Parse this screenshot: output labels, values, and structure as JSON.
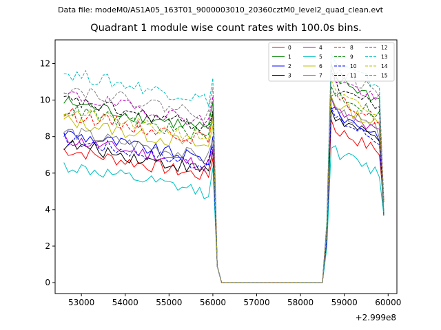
{
  "header": {
    "suptitle": "Data file: modeM0/AS1A05_163T01_9000003010_20360cztM0_level2_quad_clean.evt",
    "title": "Quadrant 1 module wise count rates with 100.0s bins."
  },
  "chart_data": {
    "type": "line",
    "title": "Quadrant 1 module wise count rates with 100.0s bins.",
    "xlabel": "",
    "ylabel": "",
    "x_offset_label": "+2.999e8",
    "xlim": [
      52400,
      60200
    ],
    "ylim": [
      -0.6,
      13.3
    ],
    "xticks": [
      53000,
      54000,
      55000,
      56000,
      57000,
      58000,
      59000,
      60000
    ],
    "xtick_labels": [
      "53000",
      "54000",
      "55000",
      "56000",
      "57000",
      "58000",
      "59000",
      "60000"
    ],
    "yticks": [
      0,
      2,
      4,
      6,
      8,
      10,
      12
    ],
    "ytick_labels": [
      "0",
      "2",
      "4",
      "6",
      "8",
      "10",
      "12"
    ],
    "legend_position": "top-right",
    "grid": false,
    "x_start": 52600,
    "x_step": 100,
    "n_points": 74,
    "gap_index_range": [
      35,
      60
    ],
    "series": [
      {
        "name": "0",
        "color": "#ff0000",
        "dash": "solid",
        "level1": 6.4,
        "level2": 7.6
      },
      {
        "name": "1",
        "color": "#008000",
        "dash": "solid",
        "level1": 9.0,
        "level2": 10.4
      },
      {
        "name": "2",
        "color": "#0000ff",
        "dash": "solid",
        "level1": 7.3,
        "level2": 8.5
      },
      {
        "name": "3",
        "color": "#000000",
        "dash": "solid",
        "level1": 6.7,
        "level2": 8.2
      },
      {
        "name": "4",
        "color": "#c000c0",
        "dash": "solid",
        "level1": 7.0,
        "level2": 8.6
      },
      {
        "name": "5",
        "color": "#00bfbf",
        "dash": "solid",
        "level1": 5.5,
        "level2": 6.4
      },
      {
        "name": "6",
        "color": "#bfbf00",
        "dash": "solid",
        "level1": 8.0,
        "level2": 9.0
      },
      {
        "name": "7",
        "color": "#808080",
        "dash": "solid",
        "level1": 7.4,
        "level2": 8.7
      },
      {
        "name": "8",
        "color": "#ff0000",
        "dash": "dashed",
        "level1": 8.4,
        "level2": 9.3
      },
      {
        "name": "9",
        "color": "#008000",
        "dash": "dashed",
        "level1": 8.6,
        "level2": 9.6
      },
      {
        "name": "10",
        "color": "#0000ff",
        "dash": "dashed",
        "level1": 7.0,
        "level2": 8.2
      },
      {
        "name": "11",
        "color": "#000000",
        "dash": "dashed",
        "level1": 9.1,
        "level2": 10.0
      },
      {
        "name": "12",
        "color": "#c000c0",
        "dash": "dashed",
        "level1": 9.4,
        "level2": 10.4
      },
      {
        "name": "13",
        "color": "#00bfbf",
        "dash": "dashed",
        "level1": 10.6,
        "level2": 11.2
      },
      {
        "name": "14",
        "color": "#bfbf00",
        "dash": "dashed",
        "level1": 8.5,
        "level2": 9.5
      },
      {
        "name": "15",
        "color": "#808080",
        "dash": "dashed",
        "level1": 9.8,
        "level2": 10.8
      }
    ]
  }
}
